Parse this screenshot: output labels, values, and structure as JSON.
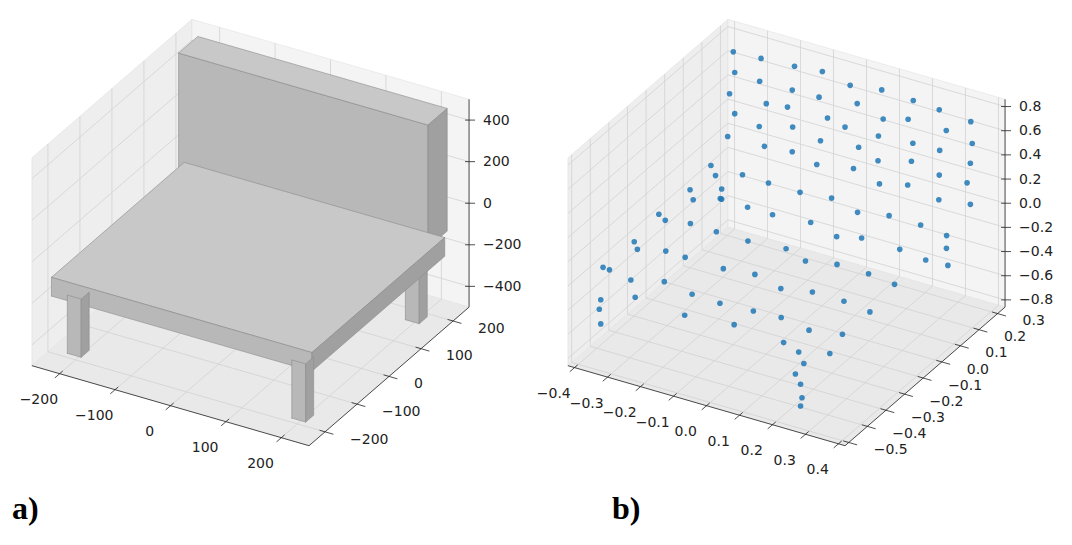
{
  "chart_data": [
    {
      "type": "mesh3d",
      "panel_label": "a)",
      "xlim": [
        -250,
        250
      ],
      "ylim": [
        -250,
        250
      ],
      "zlim": [
        -500,
        500
      ],
      "xticks": [
        {
          "value": -200,
          "label": "−200"
        },
        {
          "value": -100,
          "label": "−100"
        },
        0,
        100,
        200
      ],
      "yticks": [
        {
          "value": -200,
          "label": "−200"
        },
        {
          "value": -100,
          "label": "−100"
        },
        0,
        100,
        200
      ],
      "zticks": [
        {
          "value": -400,
          "label": "−400"
        },
        {
          "value": -200,
          "label": "−200"
        },
        0,
        200,
        400
      ],
      "grid": true,
      "faces": [
        [
          [
            -215,
            155,
            -480
          ],
          [
            -190,
            155,
            -480
          ],
          [
            -190,
            155,
            -200
          ],
          [
            -215,
            155,
            -200
          ]
        ],
        [
          [
            -190,
            155,
            -480
          ],
          [
            -190,
            180,
            -480
          ],
          [
            -190,
            180,
            -200
          ],
          [
            -190,
            155,
            -200
          ]
        ],
        [
          [
            190,
            155,
            -480
          ],
          [
            215,
            155,
            -480
          ],
          [
            215,
            155,
            -200
          ],
          [
            190,
            155,
            -200
          ]
        ],
        [
          [
            215,
            155,
            -480
          ],
          [
            215,
            180,
            -480
          ],
          [
            215,
            180,
            -200
          ],
          [
            215,
            155,
            -200
          ]
        ],
        [
          [
            -225,
            165,
            -120
          ],
          [
            225,
            165,
            -120
          ],
          [
            225,
            165,
            470
          ],
          [
            -225,
            165,
            470
          ]
        ],
        [
          [
            -225,
            165,
            470
          ],
          [
            225,
            165,
            470
          ],
          [
            225,
            225,
            470
          ],
          [
            -225,
            225,
            470
          ]
        ],
        [
          [
            225,
            165,
            -120
          ],
          [
            225,
            225,
            -120
          ],
          [
            225,
            225,
            470
          ],
          [
            225,
            165,
            470
          ]
        ],
        [
          [
            -235,
            -215,
            -110
          ],
          [
            235,
            -215,
            -110
          ],
          [
            235,
            200,
            -110
          ],
          [
            -235,
            200,
            -110
          ]
        ],
        [
          [
            -235,
            -215,
            -200
          ],
          [
            235,
            -215,
            -200
          ],
          [
            235,
            -215,
            -110
          ],
          [
            -235,
            -215,
            -110
          ]
        ],
        [
          [
            235,
            -215,
            -200
          ],
          [
            235,
            200,
            -200
          ],
          [
            235,
            200,
            -110
          ],
          [
            235,
            -215,
            -110
          ]
        ],
        [
          [
            -215,
            -200,
            -480
          ],
          [
            -190,
            -200,
            -480
          ],
          [
            -190,
            -200,
            -200
          ],
          [
            -215,
            -200,
            -200
          ]
        ],
        [
          [
            -190,
            -200,
            -480
          ],
          [
            -190,
            -175,
            -480
          ],
          [
            -190,
            -175,
            -200
          ],
          [
            -190,
            -200,
            -200
          ]
        ],
        [
          [
            190,
            -200,
            -480
          ],
          [
            215,
            -200,
            -480
          ],
          [
            215,
            -200,
            -200
          ],
          [
            190,
            -200,
            -200
          ]
        ],
        [
          [
            215,
            -200,
            -480
          ],
          [
            215,
            -175,
            -480
          ],
          [
            215,
            -175,
            -200
          ],
          [
            215,
            -200,
            -200
          ]
        ]
      ],
      "colors": [
        "#b8b8b8",
        "#a0a0a0",
        "#b8b8b8",
        "#a0a0a0",
        "#b8b8b8",
        "#c8c8c8",
        "#a0a0a0",
        "#c8c8c8",
        "#b8b8b8",
        "#a0a0a0",
        "#b8b8b8",
        "#a0a0a0",
        "#b8b8b8",
        "#a0a0a0"
      ]
    },
    {
      "type": "scatter3d",
      "panel_label": "b)",
      "xlim": [
        -0.42,
        0.42
      ],
      "ylim": [
        -0.52,
        0.34
      ],
      "zlim": [
        -0.86,
        0.86
      ],
      "xticks": [
        {
          "value": -0.4,
          "label": "−0.4"
        },
        {
          "value": -0.3,
          "label": "−0.3"
        },
        {
          "value": -0.2,
          "label": "−0.2"
        },
        {
          "value": -0.1,
          "label": "−0.1"
        },
        {
          "value": 0,
          "label": "0.0"
        },
        0.1,
        0.2,
        0.3,
        0.4
      ],
      "yticks": [
        {
          "value": -0.5,
          "label": "−0.5"
        },
        {
          "value": -0.4,
          "label": "−0.4"
        },
        {
          "value": -0.3,
          "label": "−0.3"
        },
        {
          "value": -0.2,
          "label": "−0.2"
        },
        {
          "value": -0.1,
          "label": "−0.1"
        },
        {
          "value": 0,
          "label": "0.0"
        },
        0.1,
        0.2,
        0.3
      ],
      "zticks": [
        {
          "value": -0.8,
          "label": "−0.8"
        },
        {
          "value": -0.6,
          "label": "−0.6"
        },
        {
          "value": -0.4,
          "label": "−0.4"
        },
        {
          "value": -0.2,
          "label": "−0.2"
        },
        {
          "value": 0,
          "label": "0.0"
        },
        0.2,
        0.4,
        0.6,
        0.8
      ],
      "grid": true,
      "color": "#1f77b4",
      "marker": "circle",
      "points": [
        [
          -0.37,
          0.28,
          0.71
        ],
        [
          -0.28,
          0.27,
          0.74
        ],
        [
          -0.19,
          0.29,
          0.72
        ],
        [
          -0.1,
          0.28,
          0.76
        ],
        [
          -0.01,
          0.27,
          0.73
        ],
        [
          0.08,
          0.28,
          0.75
        ],
        [
          0.17,
          0.29,
          0.72
        ],
        [
          0.26,
          0.27,
          0.74
        ],
        [
          0.35,
          0.28,
          0.7
        ],
        [
          -0.36,
          0.27,
          0.56
        ],
        [
          -0.29,
          0.28,
          0.53
        ],
        [
          -0.18,
          0.26,
          0.57
        ],
        [
          -0.11,
          0.28,
          0.54
        ],
        [
          0.0,
          0.29,
          0.56
        ],
        [
          0.09,
          0.27,
          0.53
        ],
        [
          0.16,
          0.28,
          0.57
        ],
        [
          0.27,
          0.29,
          0.55
        ],
        [
          0.36,
          0.27,
          0.54
        ],
        [
          -0.37,
          0.26,
          0.39
        ],
        [
          -0.27,
          0.28,
          0.36
        ],
        [
          -0.2,
          0.27,
          0.4
        ],
        [
          -0.09,
          0.29,
          0.37
        ],
        [
          -0.02,
          0.26,
          0.39
        ],
        [
          0.07,
          0.28,
          0.36
        ],
        [
          0.18,
          0.27,
          0.4
        ],
        [
          0.25,
          0.29,
          0.37
        ],
        [
          0.36,
          0.26,
          0.39
        ],
        [
          -0.36,
          0.27,
          0.22
        ],
        [
          -0.28,
          0.26,
          0.19
        ],
        [
          -0.19,
          0.28,
          0.23
        ],
        [
          -0.1,
          0.27,
          0.2
        ],
        [
          0.01,
          0.28,
          0.22
        ],
        [
          0.08,
          0.26,
          0.19
        ],
        [
          0.17,
          0.28,
          0.23
        ],
        [
          0.26,
          0.27,
          0.2
        ],
        [
          0.35,
          0.26,
          0.22
        ],
        [
          -0.37,
          0.25,
          0.05
        ],
        [
          -0.27,
          0.27,
          0.02
        ],
        [
          -0.18,
          0.26,
          0.06
        ],
        [
          -0.1,
          0.25,
          0.03
        ],
        [
          0.0,
          0.27,
          0.05
        ],
        [
          0.09,
          0.25,
          0.02
        ],
        [
          0.17,
          0.26,
          0.06
        ],
        [
          0.27,
          0.25,
          0.03
        ],
        [
          0.36,
          0.26,
          0.05
        ],
        [
          -0.37,
          -0.42,
          -0.14
        ],
        [
          -0.28,
          -0.43,
          -0.16
        ],
        [
          -0.19,
          -0.41,
          -0.13
        ],
        [
          -0.1,
          -0.42,
          -0.15
        ],
        [
          -0.01,
          -0.43,
          -0.14
        ],
        [
          0.08,
          -0.41,
          -0.16
        ],
        [
          0.17,
          -0.42,
          -0.13
        ],
        [
          0.26,
          -0.43,
          -0.15
        ],
        [
          0.35,
          -0.41,
          -0.14
        ],
        [
          -0.36,
          -0.27,
          -0.12
        ],
        [
          -0.27,
          -0.26,
          -0.14
        ],
        [
          -0.2,
          -0.28,
          -0.11
        ],
        [
          -0.09,
          -0.27,
          -0.13
        ],
        [
          0.0,
          -0.26,
          -0.12
        ],
        [
          0.09,
          -0.28,
          -0.14
        ],
        [
          0.18,
          -0.27,
          -0.11
        ],
        [
          0.27,
          -0.26,
          -0.13
        ],
        [
          0.36,
          -0.28,
          -0.12
        ],
        [
          -0.37,
          -0.12,
          -0.1
        ],
        [
          -0.28,
          -0.11,
          -0.12
        ],
        [
          -0.19,
          -0.13,
          -0.09
        ],
        [
          -0.1,
          -0.12,
          -0.11
        ],
        [
          0.01,
          -0.11,
          -0.1
        ],
        [
          0.08,
          -0.13,
          -0.12
        ],
        [
          0.17,
          -0.12,
          -0.09
        ],
        [
          0.26,
          -0.11,
          -0.11
        ],
        [
          0.35,
          -0.13,
          -0.1
        ],
        [
          -0.36,
          0.03,
          -0.09
        ],
        [
          -0.27,
          0.04,
          -0.11
        ],
        [
          -0.18,
          0.02,
          -0.08
        ],
        [
          -0.11,
          0.03,
          -0.1
        ],
        [
          0.0,
          0.04,
          -0.09
        ],
        [
          0.09,
          0.02,
          -0.11
        ],
        [
          0.16,
          0.03,
          -0.08
        ],
        [
          0.27,
          0.04,
          -0.1
        ],
        [
          0.36,
          0.02,
          -0.09
        ],
        [
          -0.37,
          0.16,
          -0.07
        ],
        [
          -0.28,
          0.17,
          -0.09
        ],
        [
          -0.19,
          0.15,
          -0.06
        ],
        [
          -0.1,
          0.16,
          -0.08
        ],
        [
          -0.01,
          0.17,
          -0.07
        ],
        [
          0.08,
          0.15,
          -0.09
        ],
        [
          0.17,
          0.16,
          -0.06
        ],
        [
          0.26,
          0.17,
          -0.08
        ],
        [
          0.35,
          0.15,
          -0.07
        ],
        [
          -0.39,
          -0.35,
          -0.27
        ],
        [
          -0.39,
          -0.2,
          -0.3
        ],
        [
          -0.39,
          -0.05,
          -0.26
        ],
        [
          -0.39,
          0.1,
          -0.29
        ],
        [
          -0.39,
          0.22,
          -0.25
        ],
        [
          -0.25,
          -0.46,
          -0.24
        ],
        [
          -0.1,
          -0.46,
          -0.27
        ],
        [
          0.05,
          -0.46,
          -0.23
        ],
        [
          0.2,
          -0.46,
          -0.26
        ],
        [
          0.34,
          -0.46,
          -0.24
        ],
        [
          0.24,
          -0.45,
          -0.32
        ],
        [
          0.25,
          -0.44,
          -0.42
        ],
        [
          0.23,
          -0.45,
          -0.51
        ],
        [
          0.24,
          -0.44,
          -0.6
        ],
        [
          0.25,
          -0.45,
          -0.69
        ],
        [
          0.24,
          -0.44,
          -0.78
        ],
        [
          -0.36,
          -0.45,
          -0.36
        ],
        [
          -0.37,
          -0.44,
          -0.46
        ],
        [
          -0.36,
          -0.45,
          -0.56
        ],
        [
          -0.36,
          0.2,
          -0.31
        ],
        [
          -0.37,
          0.21,
          -0.41
        ],
        [
          0.31,
          0.22,
          -0.3
        ],
        [
          0.32,
          0.21,
          -0.42
        ]
      ]
    }
  ]
}
